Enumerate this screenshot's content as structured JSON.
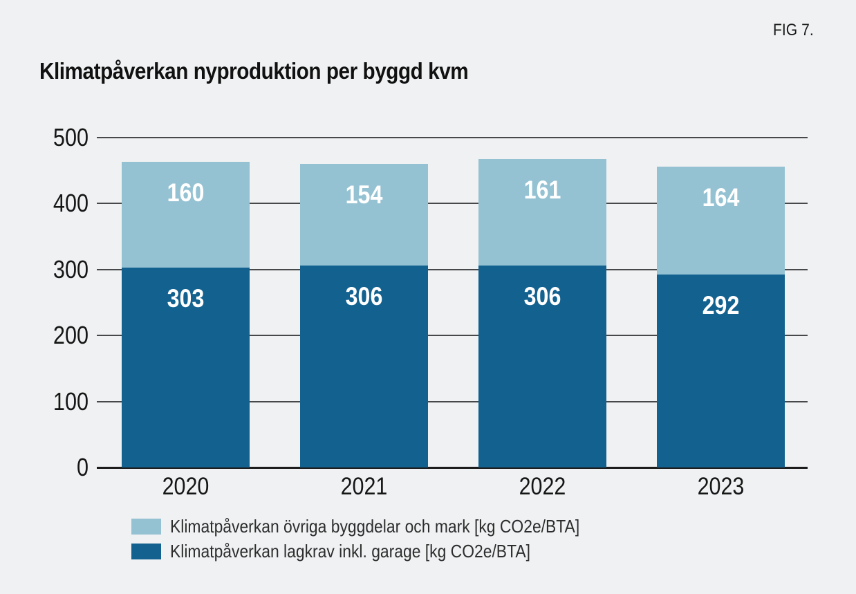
{
  "fig_label": "FIG 7.",
  "title": "Klimatpåverkan nyproduktion per byggd kvm",
  "colors": {
    "background": "#eff1f2",
    "dark_blue": "#12618f",
    "light_blue": "#95c2d3",
    "gridline": "#47484a",
    "text": "#161616",
    "value_label": "#ffffff"
  },
  "chart_data": {
    "type": "bar",
    "stacked": true,
    "title": "Klimatpåverkan nyproduktion per byggd kvm",
    "categories": [
      "2020",
      "2021",
      "2022",
      "2023"
    ],
    "series": [
      {
        "name": "Klimatpåverkan lagkrav inkl. garage [kg CO2e/BTA]",
        "color_key": "dark_blue",
        "values": [
          303,
          306,
          306,
          292
        ]
      },
      {
        "name": "Klimatpåverkan övriga byggdelar och mark [kg CO2e/BTA]",
        "color_key": "light_blue",
        "values": [
          160,
          154,
          161,
          164
        ]
      }
    ],
    "totals": [
      463,
      460,
      467,
      456
    ],
    "y_ticks": [
      0,
      100,
      200,
      300,
      400,
      500
    ],
    "ylim": [
      0,
      500
    ],
    "xlabel": "",
    "ylabel": "",
    "grid": true,
    "legend_position": "bottom"
  },
  "legend": {
    "items": [
      {
        "label": "Klimatpåverkan övriga byggdelar och mark [kg CO2e/BTA]",
        "color_key": "light_blue"
      },
      {
        "label": "Klimatpåverkan lagkrav inkl. garage [kg CO2e/BTA]",
        "color_key": "dark_blue"
      }
    ]
  }
}
